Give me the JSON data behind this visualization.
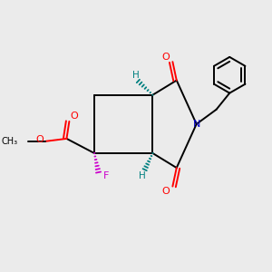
{
  "bg_color": "#ebebeb",
  "atom_colors": {
    "O": "#ff0000",
    "N": "#0000cc",
    "F": "#cc00cc",
    "H": "#008080",
    "C": "#000000"
  }
}
